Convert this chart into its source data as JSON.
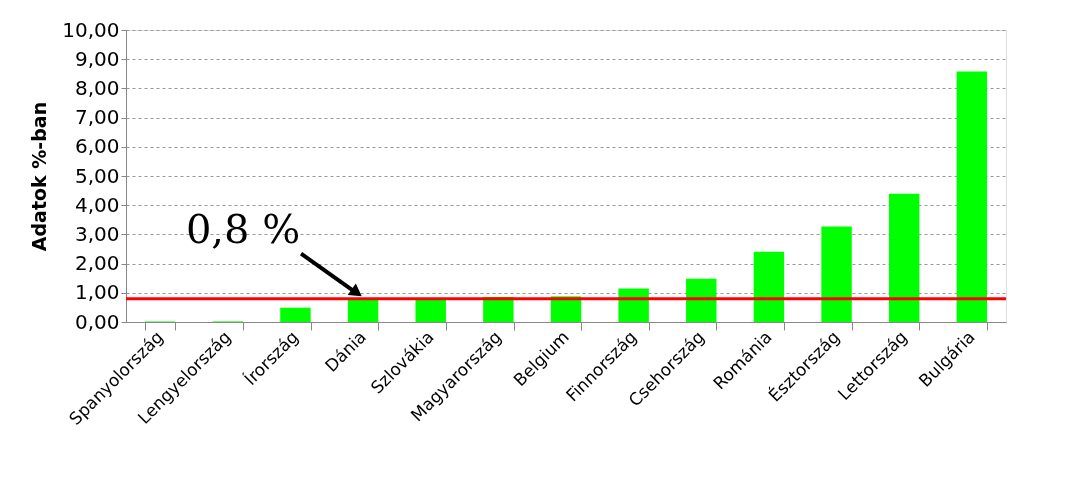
{
  "chart_data": {
    "type": "bar",
    "ylabel": "Adatok %-ban",
    "categories": [
      "Spanyolország",
      "Lengyelország",
      "Írország",
      "Dánia",
      "Szlovákia",
      "Magyarország",
      "Belgium",
      "Finnország",
      "Csehország",
      "Románia",
      "Észtország",
      "Lettország",
      "Bulgária"
    ],
    "values": [
      0.02,
      0.02,
      0.49,
      0.8,
      0.78,
      0.86,
      0.88,
      1.15,
      1.48,
      2.41,
      3.27,
      4.39,
      8.58
    ],
    "color": "#00ff00",
    "ylim": [
      0,
      10
    ],
    "yticks": [
      {
        "value": 0,
        "label": "0,00"
      },
      {
        "value": 1,
        "label": "1,00"
      },
      {
        "value": 2,
        "label": "2,00"
      },
      {
        "value": 3,
        "label": "3,00"
      },
      {
        "value": 4,
        "label": "4,00"
      },
      {
        "value": 5,
        "label": "5,00"
      },
      {
        "value": 6,
        "label": "6,00"
      },
      {
        "value": 7,
        "label": "7,00"
      },
      {
        "value": 8,
        "label": "8,00"
      },
      {
        "value": 9,
        "label": "9,00"
      },
      {
        "value": 10,
        "label": "10,00"
      }
    ],
    "grid": "y",
    "ref_lines": [
      {
        "axis": "y",
        "value": 0.8,
        "color": "#ff0000"
      }
    ],
    "annotations": [
      {
        "text": "0,8 %",
        "x": "Dánia",
        "y": 0.8
      }
    ]
  }
}
